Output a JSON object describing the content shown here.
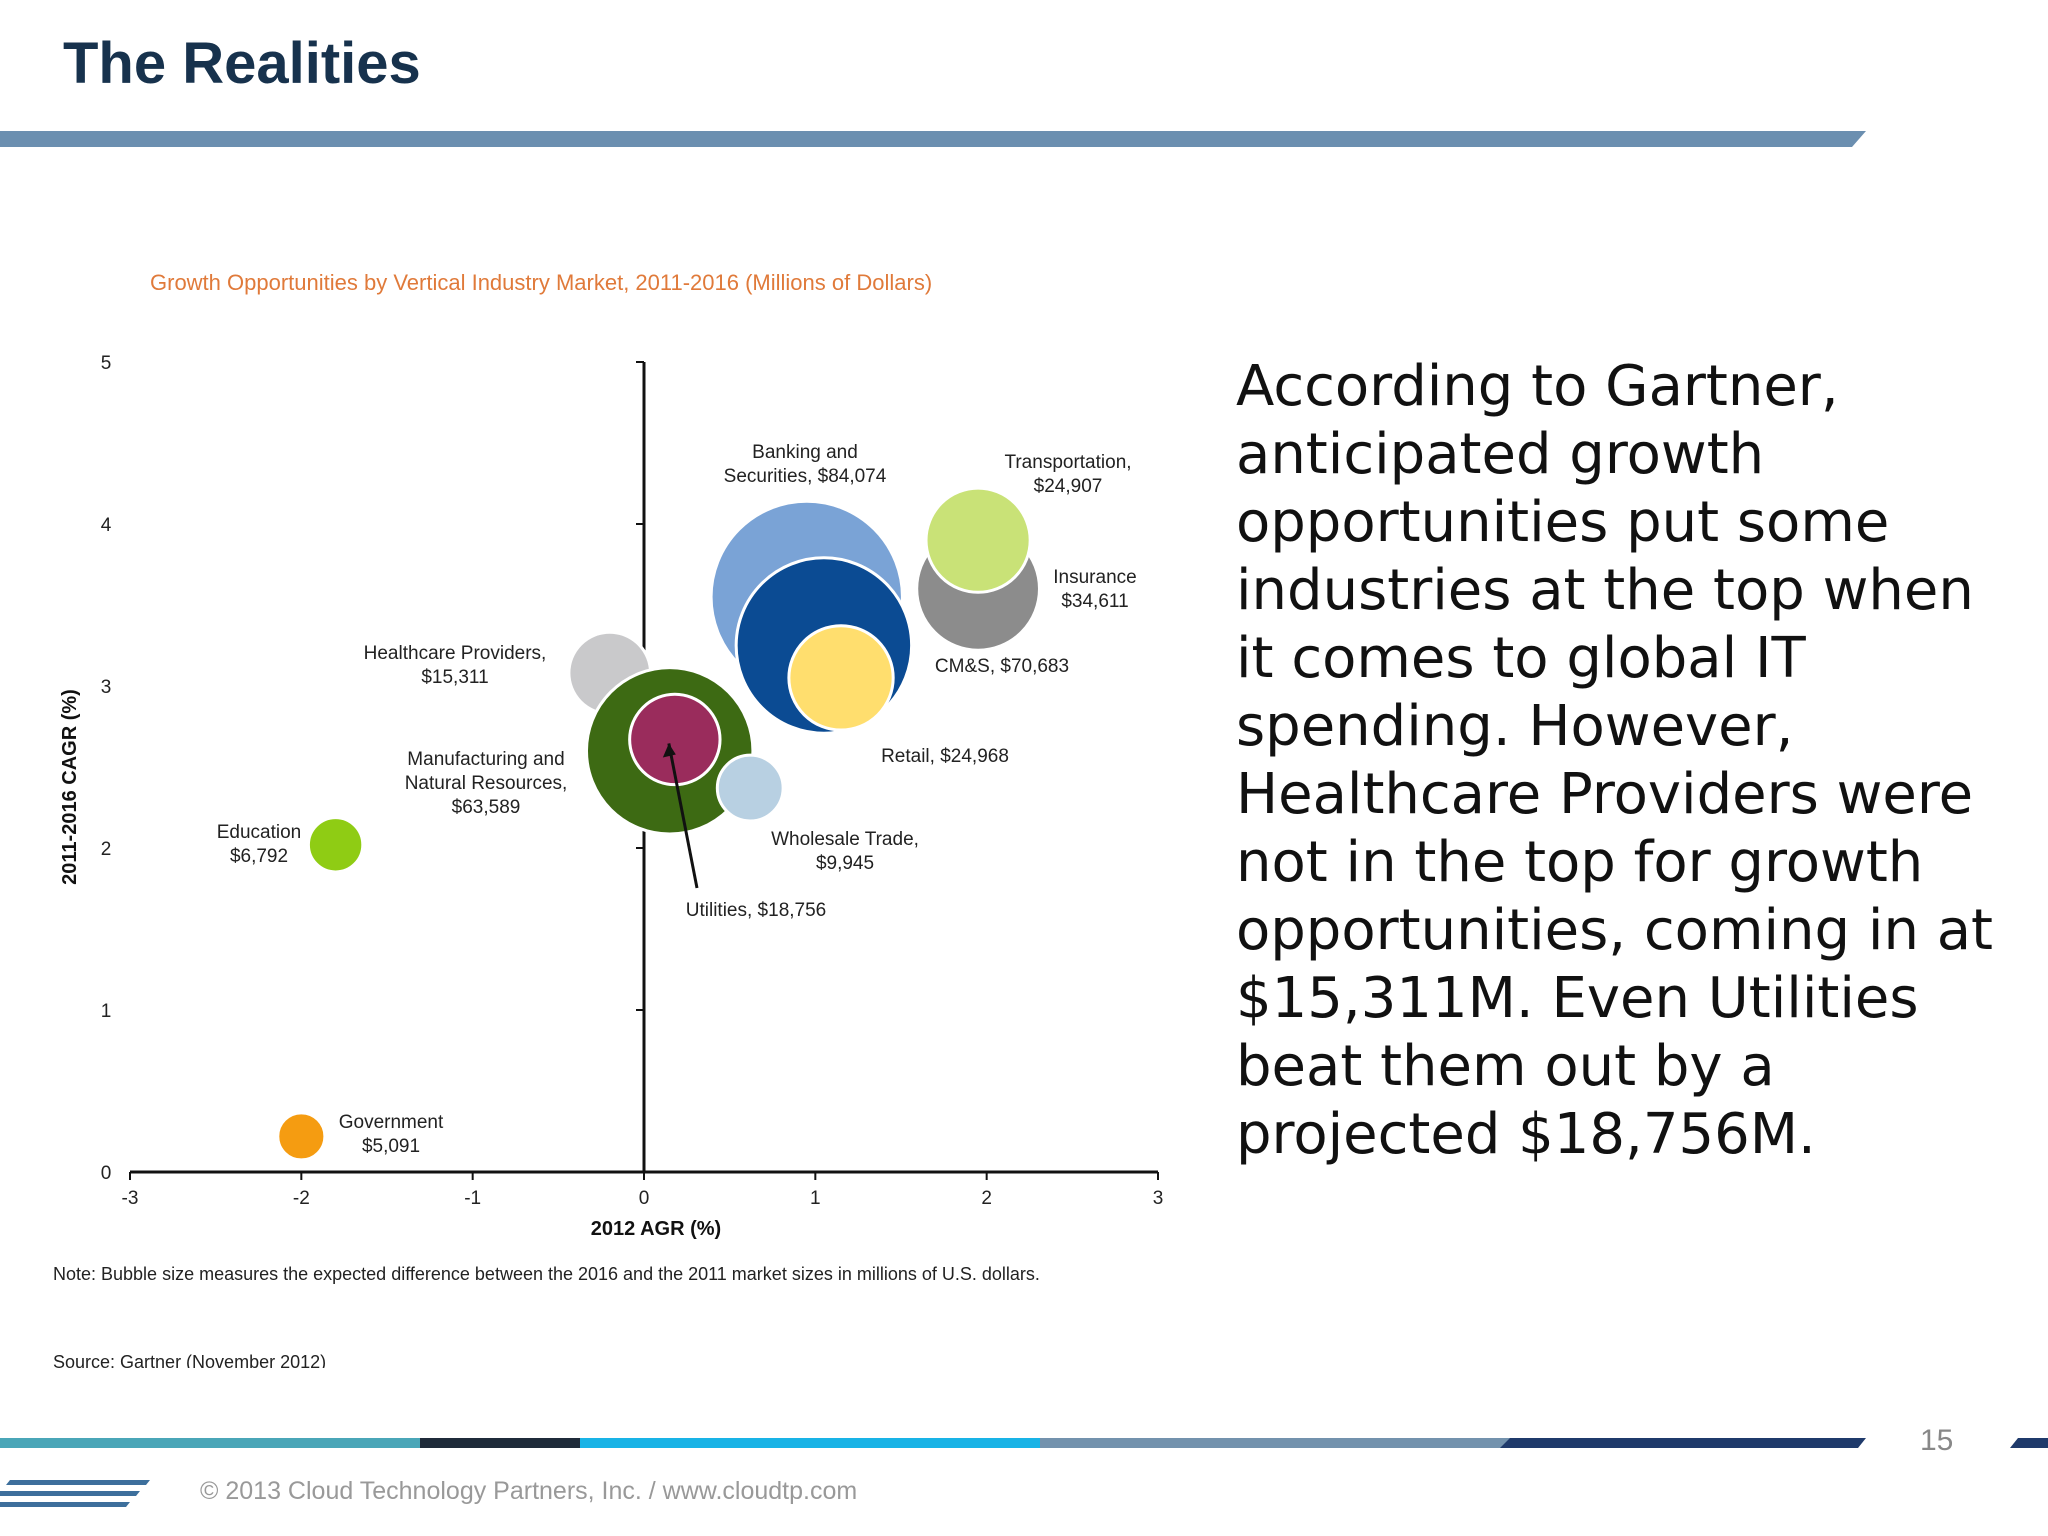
{
  "slide": {
    "title": "The Realities",
    "page_number": "15",
    "copyright": "© 2013 Cloud Technology Partners, Inc.  /  www.cloudtp.com",
    "body_lines": [
      "According to Gartner,",
      "anticipated growth",
      "opportunities put some",
      "industries at the top when",
      "it comes to global IT",
      "spending.  However,",
      "Healthcare Providers were",
      "not in the top for growth",
      "opportunities, coming in at",
      "$15,311M. Even Utilities",
      "beat them out by a",
      "projected $18,756M."
    ],
    "note": "Note: Bubble size measures the expected difference between the 2016 and the 2011 market sizes in millions of U.S. dollars.",
    "source": "Source: Gartner (November 2012)",
    "colors": {
      "title": "#17324d",
      "rule": "#6b8fb0",
      "chart_title": "#e07a3a"
    }
  },
  "chart_data": {
    "type": "scatter",
    "title": "Growth Opportunities by Vertical Industry Market, 2011-2016 (Millions of Dollars)",
    "xlabel": "2012 AGR (%)",
    "ylabel": "2011-2016 CAGR (%)",
    "xlim": [
      -3,
      3
    ],
    "ylim": [
      0,
      5
    ],
    "xticks": [
      -3,
      -2,
      -1,
      0,
      1,
      2,
      3
    ],
    "yticks": [
      0,
      1,
      2,
      3,
      4,
      5
    ],
    "bubble_size": "Bubble size measures the expected difference between the 2016 and the 2011 market sizes in millions of U.S. dollars.",
    "series": [
      {
        "label": [
          "Banking and",
          "Securities, $84,074"
        ],
        "x": 0.95,
        "y": 3.55,
        "size": 84074,
        "color": "#7aa3d6"
      },
      {
        "label": [
          "Insurance",
          "$34,611"
        ],
        "x": 1.95,
        "y": 3.6,
        "size": 34611,
        "color": "#8c8c8c"
      },
      {
        "label": [
          "Transportation,",
          "$24,907"
        ],
        "x": 1.95,
        "y": 3.9,
        "size": 24907,
        "color": "#c9e277"
      },
      {
        "label": [
          "CM&S, $70,683"
        ],
        "x": 1.05,
        "y": 3.25,
        "size": 70683,
        "color": "#0b4b93"
      },
      {
        "label": [
          "Retail, $24,968"
        ],
        "x": 1.15,
        "y": 3.05,
        "size": 24968,
        "color": "#ffde6e"
      },
      {
        "label": [
          "Healthcare Providers,",
          "$15,311"
        ],
        "x": -0.2,
        "y": 3.08,
        "size": 15311,
        "color": "#c9c9cb"
      },
      {
        "label": [
          "Manufacturing and",
          "Natural Resources,",
          "$63,589"
        ],
        "x": 0.15,
        "y": 2.6,
        "size": 63589,
        "color": "#3d6a13"
      },
      {
        "label": [
          "Utilities, $18,756"
        ],
        "x": 0.18,
        "y": 2.67,
        "size": 18756,
        "color": "#9a2c5c"
      },
      {
        "label": [
          "Wholesale Trade,",
          "$9,945"
        ],
        "x": 0.62,
        "y": 2.37,
        "size": 9945,
        "color": "#b8d0e2"
      },
      {
        "label": [
          "Education",
          "$6,792"
        ],
        "x": -1.8,
        "y": 2.02,
        "size": 6792,
        "color": "#8fcc14"
      },
      {
        "label": [
          "Government",
          "$5,091"
        ],
        "x": -2.0,
        "y": 0.22,
        "size": 5091,
        "color": "#f59c11"
      }
    ]
  }
}
